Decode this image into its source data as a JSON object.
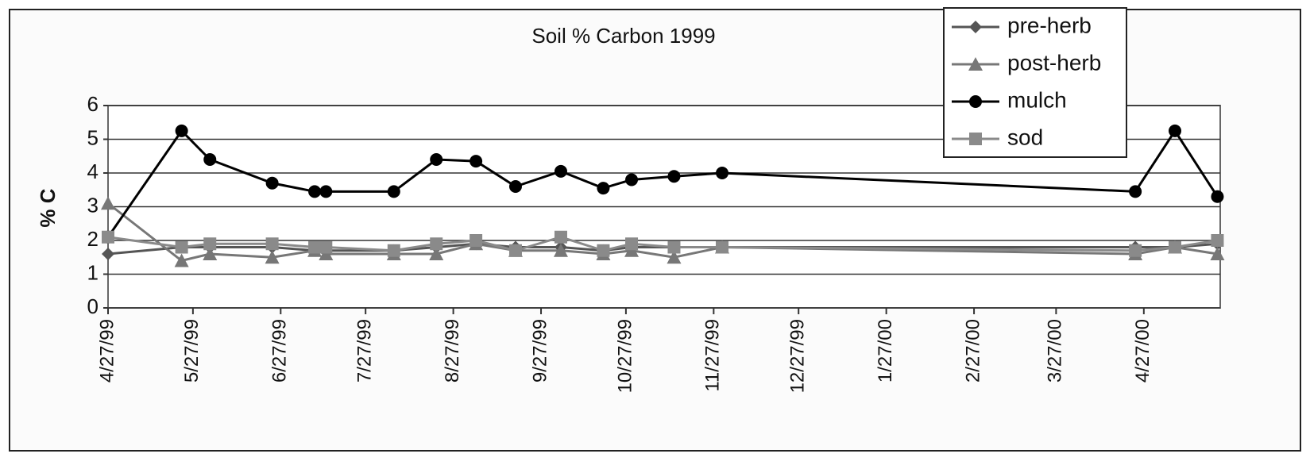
{
  "chart_data": {
    "type": "line",
    "title": "Soil % Carbon 1999",
    "y_label": "% C",
    "x": [
      "4/27/99",
      "5/23/99",
      "6/2/99",
      "6/24/99",
      "7/9/99",
      "7/13/99",
      "8/6/99",
      "8/21/99",
      "9/4/99",
      "9/18/99",
      "10/4/99",
      "10/19/99",
      "10/29/99",
      "11/13/99",
      "11/30/99",
      "4/24/00",
      "5/8/00",
      "5/23/00"
    ],
    "series": [
      {
        "name": "pre-herb",
        "color": "#555555",
        "marker": "diamond",
        "values": [
          1.6,
          1.8,
          1.8,
          1.8,
          1.7,
          1.7,
          1.7,
          1.8,
          1.9,
          1.8,
          1.8,
          1.7,
          1.8,
          1.8,
          1.8,
          1.8,
          1.8,
          1.9
        ]
      },
      {
        "name": "post-herb",
        "color": "#777777",
        "marker": "triangle",
        "values": [
          3.1,
          1.4,
          1.6,
          1.5,
          1.7,
          1.6,
          1.6,
          1.6,
          1.9,
          1.7,
          1.7,
          1.6,
          1.7,
          1.5,
          1.8,
          1.6,
          1.8,
          1.6
        ]
      },
      {
        "name": "mulch",
        "color": "#000000",
        "marker": "circle",
        "values": [
          2.1,
          5.25,
          4.4,
          3.7,
          3.45,
          3.45,
          3.45,
          4.4,
          4.35,
          3.6,
          4.05,
          3.55,
          3.8,
          3.9,
          4.0,
          3.45,
          5.25,
          3.3
        ]
      },
      {
        "name": "sod",
        "color": "#8a8a8a",
        "marker": "square",
        "values": [
          2.1,
          1.8,
          1.9,
          1.9,
          1.8,
          1.8,
          1.7,
          1.9,
          2.0,
          1.7,
          2.1,
          1.7,
          1.9,
          1.8,
          1.8,
          1.7,
          1.8,
          2.0
        ]
      }
    ],
    "xlim": [
      "4/27/99",
      "5/24/00"
    ],
    "xticks": [
      "4/27/99",
      "5/27/99",
      "6/27/99",
      "7/27/99",
      "8/27/99",
      "9/27/99",
      "10/27/99",
      "11/27/99",
      "12/27/99",
      "1/27/00",
      "2/27/00",
      "3/27/00",
      "4/27/00"
    ],
    "ylim": [
      0,
      6
    ],
    "yticks": [
      0,
      1,
      2,
      3,
      4,
      5,
      6
    ],
    "grid": true,
    "legend": "top-right"
  }
}
